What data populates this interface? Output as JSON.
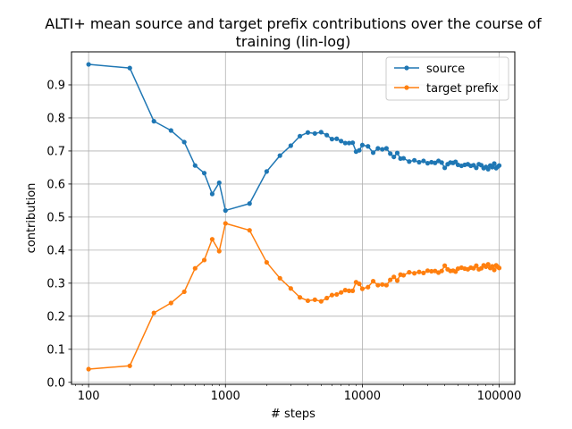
{
  "chart_data": {
    "type": "line",
    "title_line1": "ALTI+ mean source and target prefix contributions over the course of",
    "title_line2": "training (lin-log)",
    "xlabel": "# steps",
    "ylabel": "contribution",
    "xscale": "log",
    "xlim": [
      75,
      130000
    ],
    "ylim": [
      -0.006,
      1.0
    ],
    "grid": true,
    "legend_position": "top-right",
    "xticks": [
      100,
      1000,
      10000,
      100000
    ],
    "xtick_labels": [
      "100",
      "1000",
      "10000",
      "100000"
    ],
    "yticks": [
      0.0,
      0.1,
      0.2,
      0.3,
      0.4,
      0.5,
      0.6,
      0.7,
      0.8,
      0.9
    ],
    "ytick_labels": [
      "0.0",
      "0.1",
      "0.2",
      "0.3",
      "0.4",
      "0.5",
      "0.6",
      "0.7",
      "0.8",
      "0.9"
    ],
    "series": [
      {
        "name": "source",
        "color": "#1f77b4",
        "points": [
          [
            100,
            0.962
          ],
          [
            200,
            0.951
          ],
          [
            300,
            0.79
          ],
          [
            400,
            0.762
          ],
          [
            500,
            0.727
          ],
          [
            600,
            0.656
          ],
          [
            700,
            0.633
          ],
          [
            800,
            0.57
          ],
          [
            900,
            0.604
          ],
          [
            1000,
            0.52
          ],
          [
            1500,
            0.541
          ],
          [
            2000,
            0.638
          ],
          [
            2500,
            0.686
          ],
          [
            3000,
            0.716
          ],
          [
            3500,
            0.745
          ],
          [
            4000,
            0.756
          ],
          [
            4500,
            0.753
          ],
          [
            5000,
            0.757
          ],
          [
            5500,
            0.748
          ],
          [
            6000,
            0.736
          ],
          [
            6500,
            0.737
          ],
          [
            7000,
            0.73
          ],
          [
            7500,
            0.724
          ],
          [
            8000,
            0.724
          ],
          [
            8500,
            0.725
          ],
          [
            9000,
            0.698
          ],
          [
            9500,
            0.702
          ],
          [
            10000,
            0.718
          ],
          [
            11000,
            0.714
          ],
          [
            12000,
            0.695
          ],
          [
            13000,
            0.708
          ],
          [
            14000,
            0.705
          ],
          [
            15000,
            0.708
          ],
          [
            16000,
            0.692
          ],
          [
            17000,
            0.682
          ],
          [
            18000,
            0.694
          ],
          [
            19000,
            0.677
          ],
          [
            20000,
            0.678
          ],
          [
            22000,
            0.668
          ],
          [
            24000,
            0.672
          ],
          [
            26000,
            0.666
          ],
          [
            28000,
            0.67
          ],
          [
            30000,
            0.663
          ],
          [
            32000,
            0.666
          ],
          [
            34000,
            0.664
          ],
          [
            36000,
            0.67
          ],
          [
            38000,
            0.665
          ],
          [
            40000,
            0.649
          ],
          [
            42000,
            0.66
          ],
          [
            44000,
            0.665
          ],
          [
            46000,
            0.664
          ],
          [
            48000,
            0.667
          ],
          [
            50000,
            0.658
          ],
          [
            53000,
            0.655
          ],
          [
            56000,
            0.658
          ],
          [
            59000,
            0.66
          ],
          [
            62000,
            0.655
          ],
          [
            65000,
            0.657
          ],
          [
            68000,
            0.649
          ],
          [
            71000,
            0.66
          ],
          [
            74000,
            0.657
          ],
          [
            77000,
            0.648
          ],
          [
            80000,
            0.652
          ],
          [
            83000,
            0.645
          ],
          [
            86000,
            0.656
          ],
          [
            89000,
            0.651
          ],
          [
            92000,
            0.662
          ],
          [
            95000,
            0.648
          ],
          [
            98000,
            0.653
          ],
          [
            100000,
            0.656
          ]
        ]
      },
      {
        "name": "target prefix",
        "color": "#ff7f0e",
        "points": [
          [
            100,
            0.04
          ],
          [
            200,
            0.05
          ],
          [
            300,
            0.21
          ],
          [
            400,
            0.24
          ],
          [
            500,
            0.274
          ],
          [
            600,
            0.345
          ],
          [
            700,
            0.37
          ],
          [
            800,
            0.433
          ],
          [
            900,
            0.397
          ],
          [
            1000,
            0.481
          ],
          [
            1500,
            0.46
          ],
          [
            2000,
            0.363
          ],
          [
            2500,
            0.315
          ],
          [
            3000,
            0.284
          ],
          [
            3500,
            0.257
          ],
          [
            4000,
            0.247
          ],
          [
            4500,
            0.25
          ],
          [
            5000,
            0.245
          ],
          [
            5500,
            0.255
          ],
          [
            6000,
            0.264
          ],
          [
            6500,
            0.266
          ],
          [
            7000,
            0.272
          ],
          [
            7500,
            0.279
          ],
          [
            8000,
            0.277
          ],
          [
            8500,
            0.277
          ],
          [
            9000,
            0.303
          ],
          [
            9500,
            0.298
          ],
          [
            10000,
            0.283
          ],
          [
            11000,
            0.288
          ],
          [
            12000,
            0.306
          ],
          [
            13000,
            0.294
          ],
          [
            14000,
            0.296
          ],
          [
            15000,
            0.294
          ],
          [
            16000,
            0.31
          ],
          [
            17000,
            0.319
          ],
          [
            18000,
            0.308
          ],
          [
            19000,
            0.326
          ],
          [
            20000,
            0.324
          ],
          [
            22000,
            0.333
          ],
          [
            24000,
            0.33
          ],
          [
            26000,
            0.334
          ],
          [
            28000,
            0.331
          ],
          [
            30000,
            0.338
          ],
          [
            32000,
            0.336
          ],
          [
            34000,
            0.337
          ],
          [
            36000,
            0.332
          ],
          [
            38000,
            0.337
          ],
          [
            40000,
            0.353
          ],
          [
            42000,
            0.342
          ],
          [
            44000,
            0.337
          ],
          [
            46000,
            0.338
          ],
          [
            48000,
            0.335
          ],
          [
            50000,
            0.344
          ],
          [
            53000,
            0.347
          ],
          [
            56000,
            0.344
          ],
          [
            59000,
            0.342
          ],
          [
            62000,
            0.347
          ],
          [
            65000,
            0.345
          ],
          [
            68000,
            0.353
          ],
          [
            71000,
            0.342
          ],
          [
            74000,
            0.345
          ],
          [
            77000,
            0.354
          ],
          [
            80000,
            0.35
          ],
          [
            83000,
            0.357
          ],
          [
            86000,
            0.346
          ],
          [
            89000,
            0.351
          ],
          [
            92000,
            0.34
          ],
          [
            95000,
            0.354
          ],
          [
            98000,
            0.349
          ],
          [
            100000,
            0.346
          ]
        ]
      }
    ]
  }
}
